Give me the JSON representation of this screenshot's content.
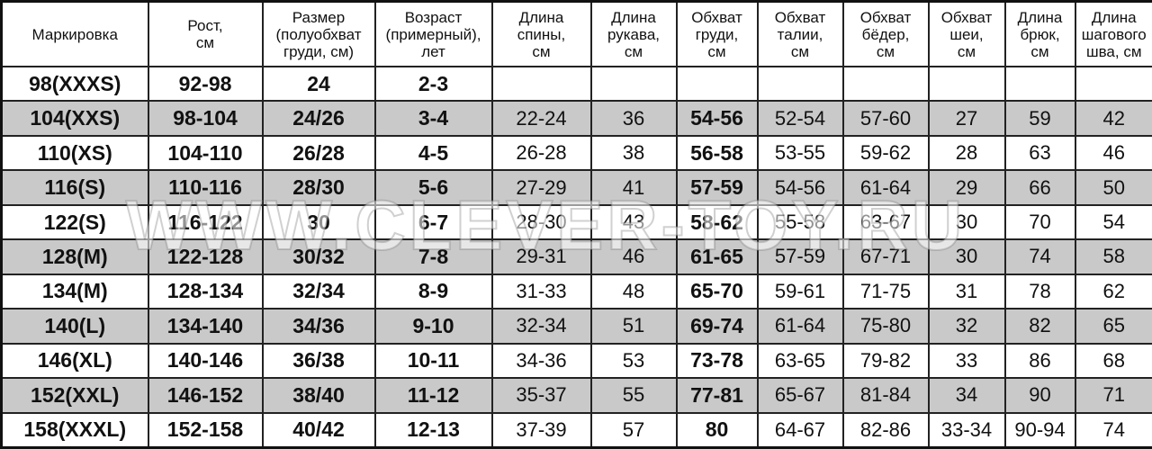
{
  "headers": [
    "Маркировка",
    "Рост,\nсм",
    "Размер\n(полуобхват\nгруди, см)",
    "Возраст\n(примерный),\nлет",
    "Длина\nспины,\nсм",
    "Длина\nрукава,\nсм",
    "Обхват\nгруди,\nсм",
    "Обхват\nталии,\nсм",
    "Обхват\nбёдер,\nсм",
    "Обхват\nшеи,\nсм",
    "Длина\nбрюк,\nсм",
    "Длина\nшагового\nшва, см"
  ],
  "rows": [
    [
      "98(XXXS)",
      "92-98",
      "24",
      "2-3",
      "",
      "",
      "",
      "",
      "",
      "",
      "",
      ""
    ],
    [
      "104(XXS)",
      "98-104",
      "24/26",
      "3-4",
      "22-24",
      "36",
      "54-56",
      "52-54",
      "57-60",
      "27",
      "59",
      "42"
    ],
    [
      "110(XS)",
      "104-110",
      "26/28",
      "4-5",
      "26-28",
      "38",
      "56-58",
      "53-55",
      "59-62",
      "28",
      "63",
      "46"
    ],
    [
      "116(S)",
      "110-116",
      "28/30",
      "5-6",
      "27-29",
      "41",
      "57-59",
      "54-56",
      "61-64",
      "29",
      "66",
      "50"
    ],
    [
      "122(S)",
      "116-122",
      "30",
      "6-7",
      "28-30",
      "43",
      "58-62",
      "55-58",
      "63-67",
      "30",
      "70",
      "54"
    ],
    [
      "128(M)",
      "122-128",
      "30/32",
      "7-8",
      "29-31",
      "46",
      "61-65",
      "57-59",
      "67-71",
      "30",
      "74",
      "58"
    ],
    [
      "134(M)",
      "128-134",
      "32/34",
      "8-9",
      "31-33",
      "48",
      "65-70",
      "59-61",
      "71-75",
      "31",
      "78",
      "62"
    ],
    [
      "140(L)",
      "134-140",
      "34/36",
      "9-10",
      "32-34",
      "51",
      "69-74",
      "61-64",
      "75-80",
      "32",
      "82",
      "65"
    ],
    [
      "146(XL)",
      "140-146",
      "36/38",
      "10-11",
      "34-36",
      "53",
      "73-78",
      "63-65",
      "79-82",
      "33",
      "86",
      "68"
    ],
    [
      "152(XXL)",
      "146-152",
      "38/40",
      "11-12",
      "35-37",
      "55",
      "77-81",
      "65-67",
      "81-84",
      "34",
      "90",
      "71"
    ],
    [
      "158(XXXL)",
      "152-158",
      "40/42",
      "12-13",
      "37-39",
      "57",
      "80",
      "64-67",
      "82-86",
      "33-34",
      "90-94",
      "74"
    ]
  ],
  "watermark": "WWW.CLEVER-TOY.RU",
  "colors": {
    "row_alt": "#c9c9c9",
    "border": "#222222"
  }
}
